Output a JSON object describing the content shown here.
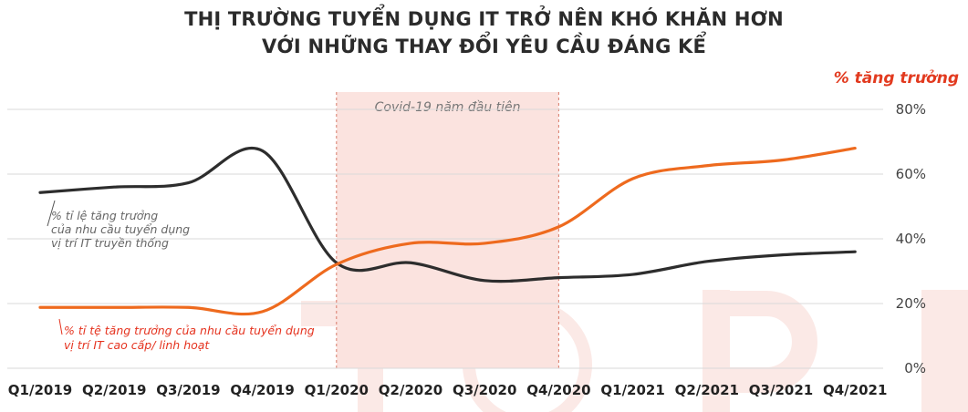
{
  "title_lines": [
    "THỊ TRƯỜNG TUYỂN DỤNG IT TRỞ NÊN KHÓ KHĂN HƠN",
    "VỚI NHỮNG THAY ĐỔI YÊU CẦU ĐÁNG KỂ"
  ],
  "unit_label": "% tăng trưởng",
  "colors": {
    "traditional": "#2d2d2d",
    "senior": "#ee6a1e",
    "senior_annotation": "#e5331f",
    "band": "#fbe3df",
    "watermark": "#fbe9e6"
  },
  "chart_data": {
    "type": "line",
    "categories": [
      "Q1/2019",
      "Q2/2019",
      "Q3/2019",
      "Q4/2019",
      "Q1/2020",
      "Q2/2020",
      "Q3/2020",
      "Q4/2020",
      "Q1/2021",
      "Q2/2021",
      "Q3/2021",
      "Q4/2021"
    ],
    "ylim": [
      0,
      80
    ],
    "y_ticks": [
      "0%",
      "20%",
      "40%",
      "60%",
      "80%"
    ],
    "grid": true,
    "shaded_period": {
      "from": "Q1/2020",
      "to": "Q4/2020",
      "label": "Covid-19 năm đầu tiên"
    },
    "series": [
      {
        "key": "traditional",
        "label_lines": [
          "% tỉ lệ tăng trưởng",
          "của nhu cầu tuyển dụng",
          "vị trí IT truyền thống"
        ],
        "values": [
          54.3,
          56,
          57.3,
          67.2,
          32.6,
          32.6,
          27.1,
          28,
          29,
          33,
          35,
          36
        ]
      },
      {
        "key": "senior",
        "label_lines": [
          "% tỉ tệ tăng trưởng của nhu cầu tuyển dụng",
          "vị trí IT cao cấp/ linh hoạt"
        ],
        "values": [
          18.8,
          18.8,
          18.8,
          17.5,
          32.1,
          38.6,
          38.6,
          43.7,
          58.6,
          62.6,
          64.3,
          68
        ]
      }
    ]
  }
}
